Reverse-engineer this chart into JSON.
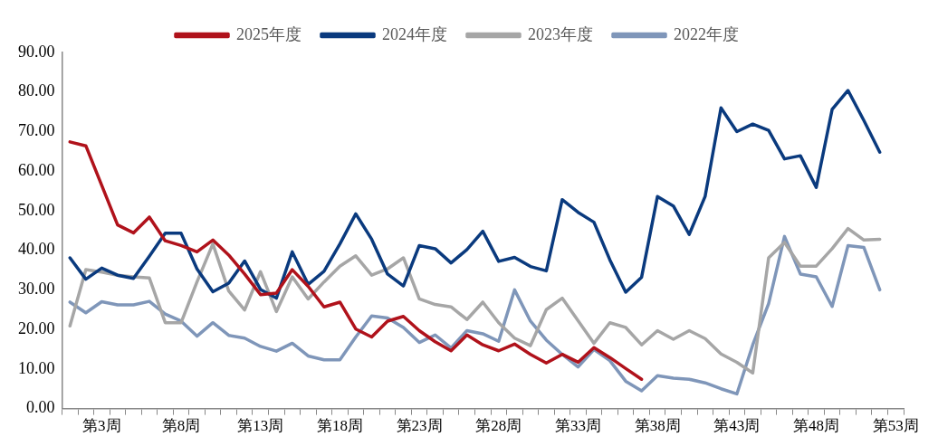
{
  "chart_data": {
    "type": "line",
    "legend": "top",
    "marker": "none",
    "line_style": "solid",
    "grid": false,
    "categories": [
      null,
      null,
      "第3周",
      null,
      null,
      null,
      null,
      "第8周",
      null,
      null,
      null,
      null,
      "第13周",
      null,
      null,
      null,
      null,
      "第18周",
      null,
      null,
      null,
      null,
      "第23周",
      null,
      null,
      null,
      null,
      "第28周",
      null,
      null,
      null,
      null,
      "第33周",
      null,
      null,
      null,
      null,
      "第38周",
      null,
      null,
      null,
      null,
      "第43周",
      null,
      null,
      null,
      null,
      "第48周",
      null,
      null,
      null,
      null,
      "第53周"
    ],
    "ylim": [
      0,
      90
    ],
    "yticks": [
      {
        "value": 0,
        "label": "0.00"
      },
      {
        "value": 10,
        "label": "10.00"
      },
      {
        "value": 20,
        "label": "20.00"
      },
      {
        "value": 30,
        "label": "30.00"
      },
      {
        "value": 40,
        "label": "40.00"
      },
      {
        "value": 50,
        "label": "50.00"
      },
      {
        "value": 60,
        "label": "60.00"
      },
      {
        "value": 70,
        "label": "70.00"
      },
      {
        "value": 80,
        "label": "80.00"
      },
      {
        "value": 90,
        "label": "90.00"
      }
    ],
    "series": [
      {
        "name": "2025年度",
        "color": "#b0121b",
        "values": [
          67.4,
          66.4,
          56.4,
          46.4,
          44.4,
          48.4,
          42.4,
          41.2,
          39.6,
          42.6,
          38.8,
          34,
          28.8,
          29.2,
          35.1,
          30.9,
          25.7,
          26.9,
          20.1,
          18.1,
          22.1,
          23.3,
          19.7,
          16.9,
          14.6,
          18.6,
          16.1,
          14.6,
          16.3,
          13.7,
          11.5,
          13.7,
          11.7,
          15.4,
          12.9,
          10.1,
          7.4,
          null,
          null,
          null,
          null,
          null,
          null,
          null,
          null,
          null,
          null,
          null,
          null,
          null,
          null,
          null,
          null
        ]
      },
      {
        "name": "2024年度",
        "color": "#0a3a7e",
        "values": [
          38.1,
          32.7,
          35.5,
          33.7,
          32.9,
          38.5,
          44.3,
          44.3,
          35.3,
          29.5,
          31.7,
          37.3,
          30.1,
          27.9,
          39.6,
          31.4,
          34.7,
          41.6,
          49.2,
          42.8,
          34,
          31,
          41.2,
          40.4,
          36.8,
          40.2,
          44.8,
          37.2,
          38.2,
          35.9,
          34.8,
          52.8,
          49.6,
          47.1,
          37.6,
          29.4,
          33.2,
          53.6,
          51.2,
          44,
          53.6,
          76,
          70,
          71.9,
          70.3,
          63.1,
          63.9,
          55.9,
          75.6,
          80.4,
          72.8,
          64.8,
          null
        ]
      },
      {
        "name": "2023年度",
        "color": "#a6a6a6",
        "values": [
          20.9,
          35.1,
          34.5,
          33.7,
          33.3,
          33,
          21.7,
          21.7,
          32,
          41.6,
          29.7,
          24.9,
          34.6,
          24.5,
          33.3,
          27.7,
          32,
          36,
          38.6,
          33.7,
          35.3,
          38.1,
          27.7,
          26.3,
          25.7,
          22.5,
          26.9,
          21.7,
          17.8,
          15.9,
          25,
          27.9,
          22.2,
          16.5,
          21.7,
          20.5,
          16.1,
          19.7,
          17.5,
          19.7,
          17.7,
          13.8,
          11.7,
          9,
          38.1,
          42,
          36,
          36,
          40.4,
          45.5,
          42.6,
          42.8,
          null
        ]
      },
      {
        "name": "2022年度",
        "color": "#7f96b9",
        "values": [
          26.9,
          24.2,
          27,
          26.2,
          26.2,
          27.1,
          23.9,
          22.1,
          18.3,
          21.7,
          18.5,
          17.8,
          15.7,
          14.5,
          16.5,
          13.3,
          12.3,
          12.3,
          18.1,
          23.4,
          22.9,
          20.5,
          16.7,
          18.6,
          15.3,
          19.7,
          18.9,
          17,
          30,
          22.1,
          17.3,
          13.7,
          10.5,
          14.9,
          12.1,
          6.9,
          4.5,
          8.3,
          7.7,
          7.4,
          6.5,
          5,
          3.7,
          16.1,
          26.5,
          43.5,
          34,
          33.3,
          25.8,
          41.2,
          40.7,
          30,
          null
        ]
      }
    ]
  }
}
